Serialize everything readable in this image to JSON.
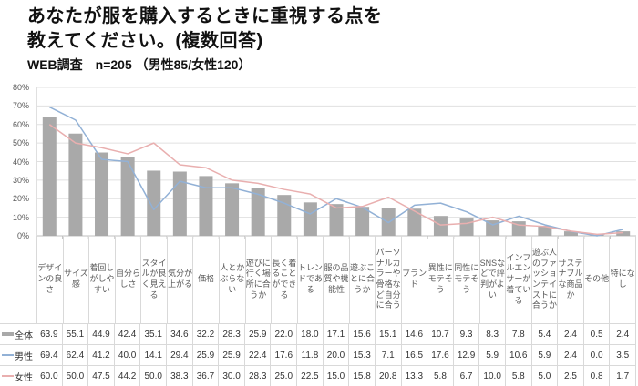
{
  "header": {
    "title_line1": "あなたが服を購入するときに重視する点を",
    "title_line2": "教えてください。(複数回答)",
    "subtitle": "WEB調査　n=205 （男性85/女性120）"
  },
  "chart_data": {
    "type": "bar",
    "subtype": "combo-bar-with-lines",
    "title": "あなたが服を購入するときに重視する点を教えてください。(複数回答)",
    "subtitle": "WEB調査　n=205 （男性85/女性120）",
    "xlabel": "",
    "ylabel": "",
    "ylim": [
      0,
      80
    ],
    "ytick_step": 10,
    "ytick_labels": [
      "0%",
      "10%",
      "20%",
      "30%",
      "40%",
      "50%",
      "60%",
      "70%",
      "80%"
    ],
    "grid": true,
    "legend_position": "table-left",
    "categories": [
      "デザインの良さ",
      "サイズ感",
      "着回しがしやすい",
      "自分らしさ",
      "スタイルが良く見える",
      "気分が上がる",
      "価格",
      "人とかぶらない",
      "遊びに行く場所に合うか",
      "長く着ることができる",
      "トレンドである",
      "服の品質や機能性",
      "遊ぶことに合うか",
      "パーソナルカラーや骨格など自分に合う",
      "ブランド",
      "異性にモテそう",
      "同性にモテそう",
      "SNSなどで評判がよい",
      "インフルエンサーが着ている",
      "遊ぶ人のファッションテイストに合うか",
      "サステナブルな商品か",
      "その他",
      "特になし"
    ],
    "series": [
      {
        "name": "全体",
        "key": "overall",
        "type": "bar",
        "color": "#a9a9a9",
        "values": [
          63.9,
          55.1,
          44.9,
          42.4,
          35.1,
          34.6,
          32.2,
          28.3,
          25.9,
          22.0,
          18.0,
          17.1,
          15.6,
          15.1,
          14.6,
          10.7,
          9.3,
          8.3,
          7.8,
          5.4,
          2.4,
          0.5,
          2.4
        ]
      },
      {
        "name": "男性",
        "key": "male",
        "type": "line",
        "color": "#92b1d6",
        "values": [
          69.4,
          62.4,
          41.2,
          40.0,
          14.1,
          29.4,
          25.9,
          25.9,
          22.4,
          17.6,
          11.8,
          20.0,
          15.3,
          7.1,
          16.5,
          17.6,
          12.9,
          5.9,
          10.6,
          5.9,
          2.4,
          0.0,
          3.5
        ]
      },
      {
        "name": "女性",
        "key": "female",
        "type": "line",
        "color": "#e9afaf",
        "values": [
          60.0,
          50.0,
          47.5,
          44.2,
          50.0,
          38.3,
          36.7,
          30.0,
          28.3,
          25.0,
          22.5,
          15.0,
          15.8,
          20.8,
          13.3,
          5.8,
          6.7,
          10.0,
          5.8,
          5.0,
          2.5,
          0.8,
          1.7
        ]
      }
    ],
    "colors": {
      "gridline": "#e0e0e0",
      "axis_line": "#bfbfbf",
      "tick_text": "#595959",
      "table_text": "#333333"
    }
  }
}
